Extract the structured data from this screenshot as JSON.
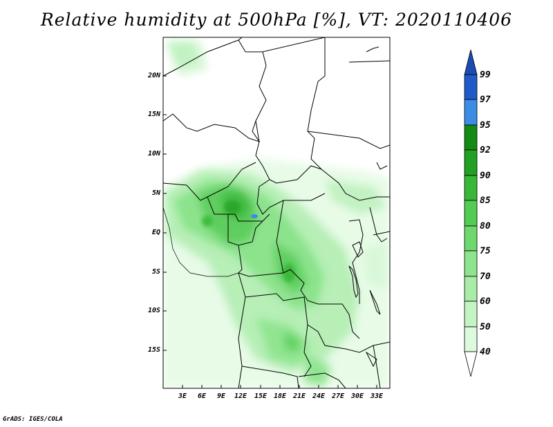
{
  "title": "Relative humidity at 500hPa [%], VT: 2020110406",
  "credit": "GrADS: IGES/COLA",
  "map": {
    "region": "Central Africa",
    "lat_labels": [
      "20N",
      "15N",
      "10N",
      "5N",
      "EQ",
      "5S",
      "10S",
      "15S"
    ],
    "lon_labels": [
      "3E",
      "6E",
      "9E",
      "12E",
      "15E",
      "18E",
      "21E",
      "24E",
      "27E",
      "30E",
      "33E"
    ],
    "lon_range": [
      0,
      35
    ],
    "lat_range": [
      -20,
      25
    ]
  },
  "colorbar": {
    "labels": [
      "99",
      "97",
      "95",
      "92",
      "90",
      "85",
      "80",
      "75",
      "70",
      "60",
      "50",
      "40"
    ],
    "colors": {
      "c40": "#f0fef0",
      "c50": "#dcfadc",
      "c60": "#c4f4c4",
      "c70": "#a8eca8",
      "c75": "#8ce48c",
      "c80": "#6ed86e",
      "c85": "#52cc52",
      "c90": "#38b838",
      "c92": "#22a022",
      "c95": "#148a14",
      "c97": "#3c8ce6",
      "c99": "#1e5ac8",
      "top": "#1a4cb4"
    }
  }
}
